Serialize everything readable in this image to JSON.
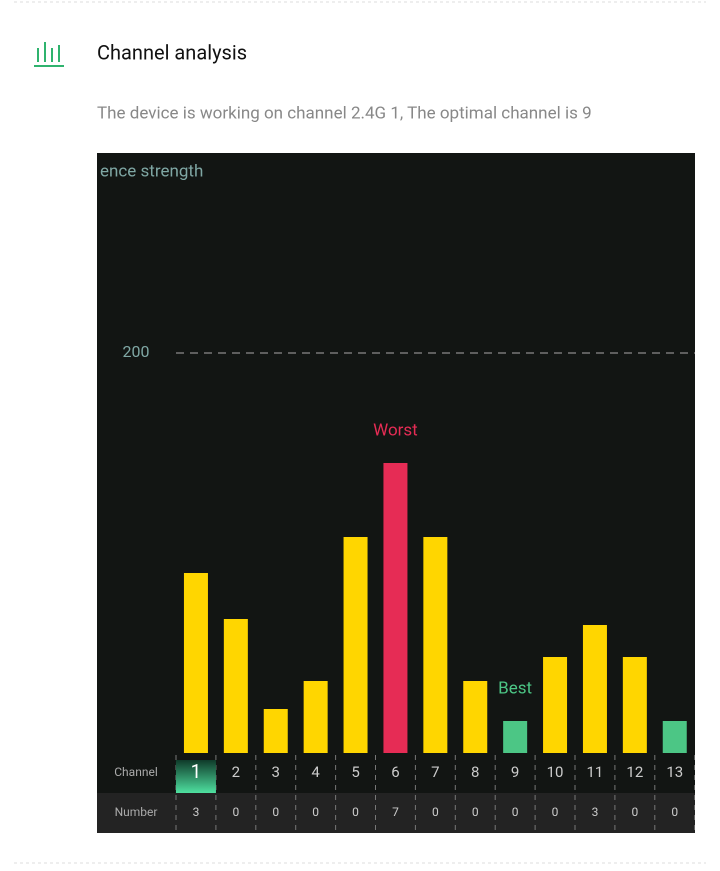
{
  "header": {
    "title": "Channel analysis",
    "description": "The device is working on channel 2.4G 1, The optimal channel is 9"
  },
  "chart_data": {
    "type": "bar",
    "ylabel": "ence strength",
    "x_label": "Channel",
    "count_label": "Number",
    "x": [
      1,
      2,
      3,
      4,
      5,
      6,
      7,
      8,
      9,
      10,
      11,
      12,
      13
    ],
    "values": [
      90,
      67,
      22,
      36,
      108,
      145,
      108,
      36,
      16,
      48,
      64,
      48,
      16
    ],
    "colors": [
      "#ffd600",
      "#ffd600",
      "#ffd600",
      "#ffd600",
      "#ffd600",
      "#e62c55",
      "#ffd600",
      "#ffd600",
      "#4cc685",
      "#ffd600",
      "#ffd600",
      "#ffd600",
      "#4cc685"
    ],
    "counts": [
      3,
      0,
      0,
      0,
      0,
      7,
      0,
      0,
      0,
      0,
      3,
      0,
      0
    ],
    "current": 1,
    "annotations": [
      {
        "text": "Worst",
        "x": 6,
        "color": "#e62c55"
      },
      {
        "text": "Best",
        "x": 9,
        "color": "#4cc685"
      }
    ],
    "ylim": [
      0,
      300
    ],
    "yticks": [
      200
    ],
    "grid": true
  }
}
